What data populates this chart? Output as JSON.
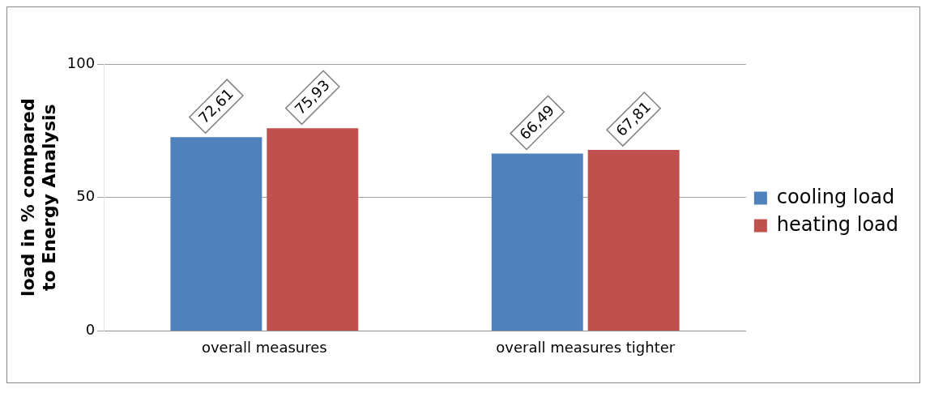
{
  "chart_data": {
    "type": "bar",
    "ylabel": "load in % compared to Energy Analysis",
    "categories": [
      "overall measures",
      "overall measures tighter"
    ],
    "series": [
      {
        "name": "cooling load",
        "color": "#4f81bd",
        "values": [
          72.61,
          66.49
        ],
        "value_labels": [
          "72,61",
          "66,49"
        ]
      },
      {
        "name": "heating load",
        "color": "#c0504d",
        "values": [
          75.93,
          67.81
        ],
        "value_labels": [
          "75,93",
          "67,81"
        ]
      }
    ],
    "ylim": [
      0,
      100
    ],
    "yticks": [
      0,
      50,
      100
    ],
    "grid": "y",
    "legend": "right"
  }
}
